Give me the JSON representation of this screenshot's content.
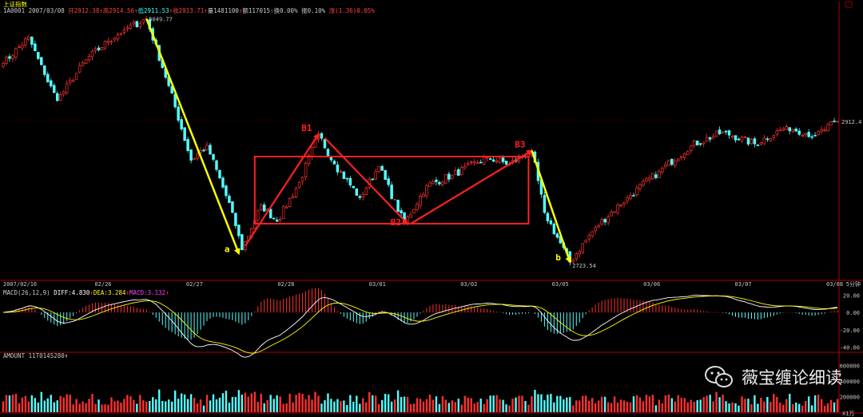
{
  "header": {
    "index_name": "上证指数",
    "line1": [
      {
        "text": "1A0001 2007/03/08",
        "color": "#c8c8c8"
      },
      {
        "text": " 开2912.38",
        "color": "#ff4040"
      },
      {
        "text": "↑",
        "color": "#ff4040"
      },
      {
        "text": "高2914.56",
        "color": "#ff4040"
      },
      {
        "text": "↑",
        "color": "#ff4040"
      },
      {
        "text": "低2911.53",
        "color": "#40ffff"
      },
      {
        "text": "↑",
        "color": "#ff4040"
      },
      {
        "text": "收2913.71",
        "color": "#ff4040"
      },
      {
        "text": "↑",
        "color": "#ff4040"
      },
      {
        "text": "量1481100",
        "color": "#c8c8c8"
      },
      {
        "text": "↑",
        "color": "#ff4040"
      },
      {
        "text": "额117015",
        "color": "#c8c8c8"
      },
      {
        "text": "↑",
        "color": "#ff4040"
      },
      {
        "text": "换0.00%",
        "color": "#c8c8c8"
      },
      {
        "text": " 振0.10%",
        "color": "#c8c8c8"
      },
      {
        "text": " 涨(1.36)0.05%",
        "color": "#ff4040"
      }
    ],
    "macd_line": [
      {
        "text": "MACD(26,12,9)",
        "color": "#c8c8c8"
      },
      {
        "text": " DIFF:4.830",
        "color": "#ffffff"
      },
      {
        "text": "↑",
        "color": "#ff4040"
      },
      {
        "text": "DEA:3.284",
        "color": "#ffff00"
      },
      {
        "text": "↑",
        "color": "#ff4040"
      },
      {
        "text": "MACD:3.132",
        "color": "#ff40ff"
      },
      {
        "text": "↑",
        "color": "#ff4040"
      }
    ],
    "amount_line": [
      {
        "text": "AMOUNT 11T0145280",
        "color": "#c8c8c8"
      },
      {
        "text": "↑",
        "color": "#ffffff"
      }
    ]
  },
  "watermark": {
    "text": "薇宝缠论细读",
    "icon": "wechat-icon"
  },
  "colors": {
    "up": "#ff3030",
    "down": "#54ffff",
    "grid": "#8b0000",
    "axis": "#b00000",
    "annotation_yellow": "#ffff00",
    "annotation_red": "#ff2020",
    "diff": "#ffffff",
    "dea": "#ffff00",
    "label": "#ff3030"
  },
  "chart_data": [
    {
      "panel": "price",
      "type": "candlestick",
      "timeframe_label": "5分钟",
      "x_tick_labels": [
        "2007/02/16",
        "02/26",
        "02/27",
        "02/28",
        "03/01",
        "03/02",
        "03/05",
        "03/06",
        "03/07",
        "03/08"
      ],
      "ylim": [
        2700,
        3060
      ],
      "price_labels": [
        {
          "text": "3049.77",
          "value": 3049.77,
          "kind": "high"
        },
        {
          "text": "2723.54",
          "value": 2723.54,
          "kind": "low"
        },
        {
          "text": "2912.4",
          "value": 2912.4,
          "kind": "last"
        }
      ],
      "keypoints": [
        {
          "bar": 0,
          "price": 2990
        },
        {
          "bar": 8,
          "price": 3025
        },
        {
          "bar": 13,
          "price": 2975
        },
        {
          "bar": 17,
          "price": 2940
        },
        {
          "bar": 26,
          "price": 2995
        },
        {
          "bar": 33,
          "price": 3020
        },
        {
          "bar": 38,
          "price": 3035
        },
        {
          "bar": 45,
          "price": 3049.77
        },
        {
          "bar": 52,
          "price": 2960
        },
        {
          "bar": 59,
          "price": 2860
        },
        {
          "bar": 64,
          "price": 2880
        },
        {
          "bar": 72,
          "price": 2790
        },
        {
          "bar": 75,
          "price": 2740
        },
        {
          "bar": 81,
          "price": 2800
        },
        {
          "bar": 86,
          "price": 2778
        },
        {
          "bar": 93,
          "price": 2830
        },
        {
          "bar": 99,
          "price": 2895
        },
        {
          "bar": 104,
          "price": 2855
        },
        {
          "bar": 112,
          "price": 2810
        },
        {
          "bar": 118,
          "price": 2852
        },
        {
          "bar": 126,
          "price": 2775
        },
        {
          "bar": 133,
          "price": 2826
        },
        {
          "bar": 141,
          "price": 2840
        },
        {
          "bar": 152,
          "price": 2864
        },
        {
          "bar": 159,
          "price": 2855
        },
        {
          "bar": 166,
          "price": 2873
        },
        {
          "bar": 170,
          "price": 2790
        },
        {
          "bar": 178,
          "price": 2723.54
        },
        {
          "bar": 186,
          "price": 2770
        },
        {
          "bar": 196,
          "price": 2810
        },
        {
          "bar": 206,
          "price": 2845
        },
        {
          "bar": 216,
          "price": 2880
        },
        {
          "bar": 226,
          "price": 2898
        },
        {
          "bar": 236,
          "price": 2882
        },
        {
          "bar": 246,
          "price": 2905
        },
        {
          "bar": 255,
          "price": 2893
        },
        {
          "bar": 262,
          "price": 2912.4
        }
      ],
      "annotations": {
        "yellow_arrows": [
          {
            "label": "a",
            "from": {
              "bar": 45,
              "price": 3049.77
            },
            "to": {
              "bar": 74,
              "price": 2735
            }
          },
          {
            "label": "b",
            "from": {
              "bar": 166,
              "price": 2873
            },
            "to": {
              "bar": 178,
              "price": 2723.54
            }
          }
        ],
        "red_arrows": [
          {
            "label": "B1",
            "from": {
              "bar": 76,
              "price": 2745
            },
            "to": {
              "bar": 99,
              "price": 2895
            }
          },
          {
            "label": "B2",
            "from": {
              "bar": 101,
              "price": 2890
            },
            "to": {
              "bar": 127,
              "price": 2775
            }
          },
          {
            "label": "B3",
            "from": {
              "bar": 128,
              "price": 2775
            },
            "to": {
              "bar": 166,
              "price": 2873
            }
          }
        ],
        "box": {
          "bar_from": 79,
          "bar_to": 165,
          "price_top": 2865,
          "price_bottom": 2775
        }
      }
    },
    {
      "panel": "macd",
      "type": "line+bar",
      "series": [
        {
          "name": "DIFF"
        },
        {
          "name": "DEA"
        },
        {
          "name": "MACD"
        }
      ],
      "ylim": [
        -45,
        25
      ],
      "y_ticks": [
        20,
        0,
        -20,
        -40
      ],
      "y_tick_labels": [
        "20.00",
        "0.00",
        "-20.00",
        "-40.00"
      ]
    },
    {
      "panel": "amount",
      "type": "bar",
      "ylim": [
        0,
        700000
      ],
      "y_ticks": [
        600000,
        400000,
        200000
      ],
      "y_tick_labels": [
        "600000",
        "400000",
        "200000"
      ],
      "unit_label": "X1万"
    }
  ]
}
